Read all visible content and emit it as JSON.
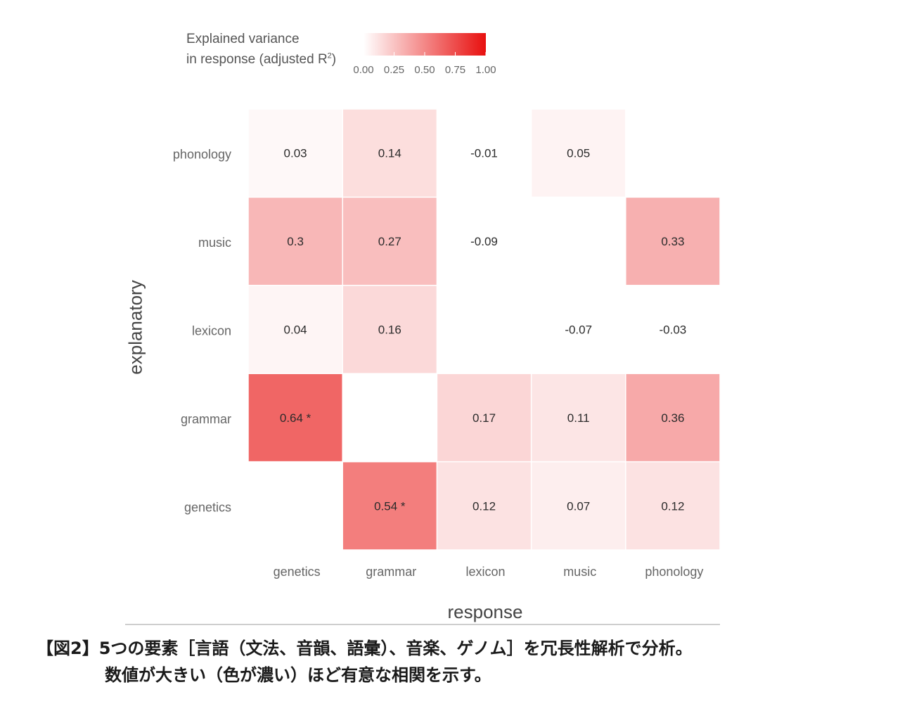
{
  "legend": {
    "title_line1": "Explained variance",
    "title_line2_prefix": "in response (adjusted R",
    "title_sup": "2",
    "title_line2_suffix": ")",
    "ticks": [
      "0.00",
      "0.25",
      "0.50",
      "0.75",
      "1.00"
    ],
    "low_color": "#ffffff",
    "high_color": "#e8100f"
  },
  "chart_data": {
    "type": "heatmap",
    "x_categories": [
      "genetics",
      "grammar",
      "lexicon",
      "music",
      "phonology"
    ],
    "y_categories": [
      "genetics",
      "grammar",
      "lexicon",
      "music",
      "phonology"
    ],
    "xlabel": "response",
    "ylabel": "explanatory",
    "value_range": [
      0,
      1
    ],
    "cells": [
      {
        "x": "genetics",
        "y": "phonology",
        "value": 0.03,
        "label": "0.03"
      },
      {
        "x": "grammar",
        "y": "phonology",
        "value": 0.14,
        "label": "0.14"
      },
      {
        "x": "lexicon",
        "y": "phonology",
        "value": -0.01,
        "label": "-0.01"
      },
      {
        "x": "music",
        "y": "phonology",
        "value": 0.05,
        "label": "0.05"
      },
      {
        "x": "genetics",
        "y": "music",
        "value": 0.3,
        "label": "0.3"
      },
      {
        "x": "grammar",
        "y": "music",
        "value": 0.27,
        "label": "0.27"
      },
      {
        "x": "lexicon",
        "y": "music",
        "value": -0.09,
        "label": "-0.09"
      },
      {
        "x": "phonology",
        "y": "music",
        "value": 0.33,
        "label": "0.33"
      },
      {
        "x": "genetics",
        "y": "lexicon",
        "value": 0.04,
        "label": "0.04"
      },
      {
        "x": "grammar",
        "y": "lexicon",
        "value": 0.16,
        "label": "0.16"
      },
      {
        "x": "music",
        "y": "lexicon",
        "value": -0.07,
        "label": "-0.07"
      },
      {
        "x": "phonology",
        "y": "lexicon",
        "value": -0.03,
        "label": "-0.03"
      },
      {
        "x": "genetics",
        "y": "grammar",
        "value": 0.64,
        "label": "0.64 *"
      },
      {
        "x": "lexicon",
        "y": "grammar",
        "value": 0.17,
        "label": "0.17"
      },
      {
        "x": "music",
        "y": "grammar",
        "value": 0.11,
        "label": "0.11"
      },
      {
        "x": "phonology",
        "y": "grammar",
        "value": 0.36,
        "label": "0.36"
      },
      {
        "x": "grammar",
        "y": "genetics",
        "value": 0.54,
        "label": "0.54 *"
      },
      {
        "x": "lexicon",
        "y": "genetics",
        "value": 0.12,
        "label": "0.12"
      },
      {
        "x": "music",
        "y": "genetics",
        "value": 0.07,
        "label": "0.07"
      },
      {
        "x": "phonology",
        "y": "genetics",
        "value": 0.12,
        "label": "0.12"
      }
    ]
  },
  "caption": {
    "line1": "【図2】5つの要素［言語（文法、音韻、語彙）、音楽、ゲノム］を冗長性解析で分析。",
    "line2": "数値が大きい（色が濃い）ほど有意な相関を示す。"
  }
}
